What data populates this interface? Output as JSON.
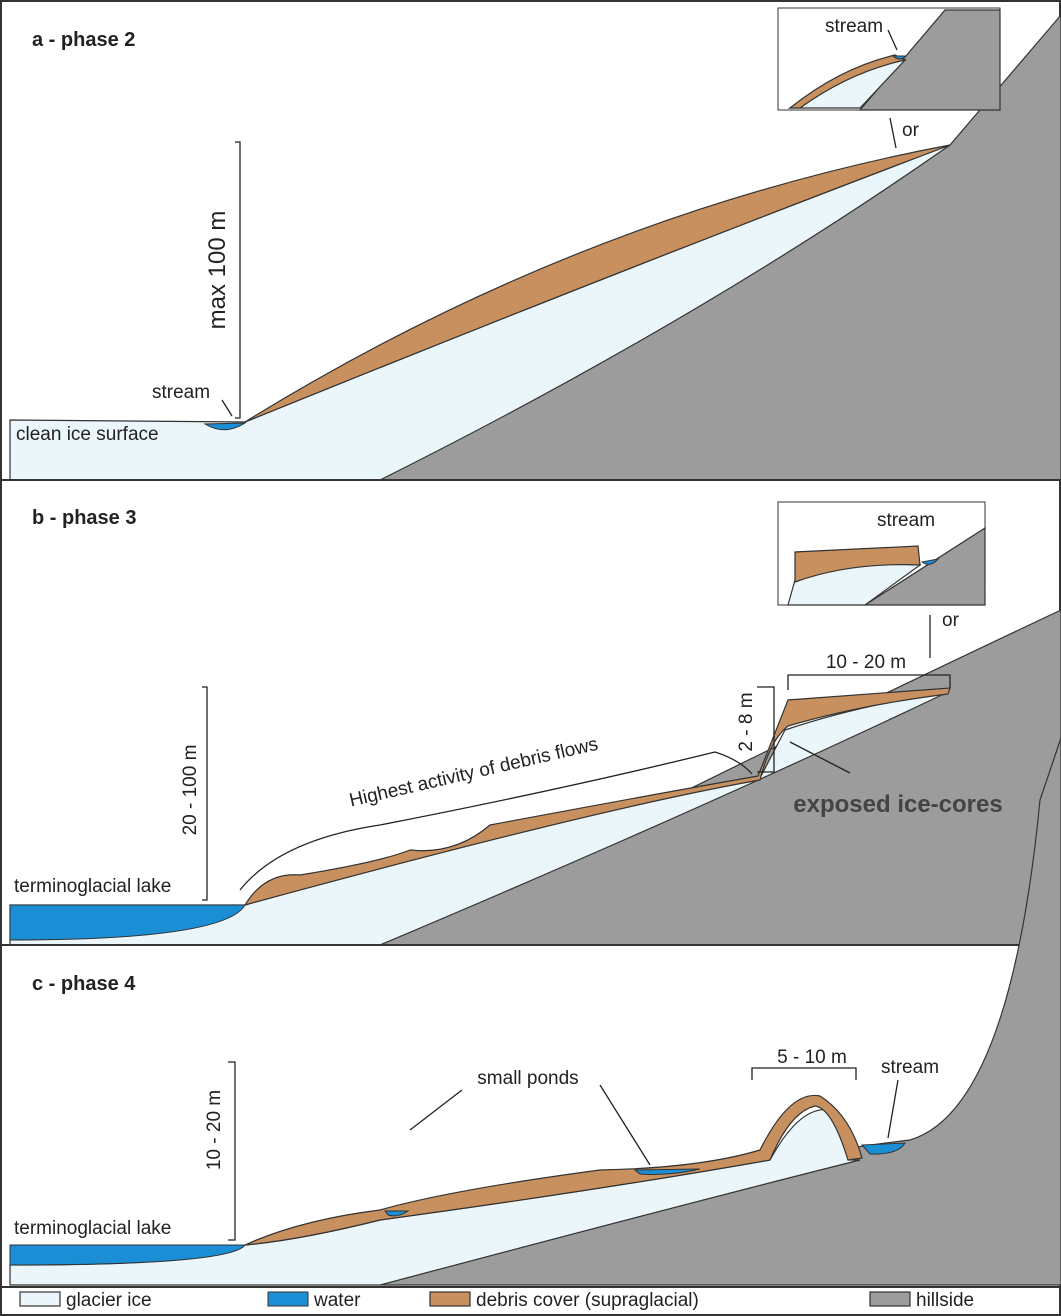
{
  "panels": [
    {
      "title": "a - phase 2",
      "height": "max 100 m",
      "stream": "stream",
      "surface": "clean ice surface",
      "inset_stream": "stream",
      "or": "or"
    },
    {
      "title": "b - phase 3",
      "height": "20 - 100 m",
      "lake": "terminoglacial lake",
      "flows": "Highest activity of debris flows",
      "step": "2 - 8 m",
      "width": "10 - 20 m",
      "ice_cores": "exposed ice-cores",
      "inset_stream": "stream",
      "or": "or"
    },
    {
      "title": "c - phase 4",
      "height": "10 - 20 m",
      "lake": "terminoglacial lake",
      "ponds": "small ponds",
      "width": "5 - 10 m",
      "stream": "stream"
    }
  ],
  "legend": [
    "glacier ice",
    "water",
    "debris cover (supraglacial)",
    "hillside"
  ]
}
